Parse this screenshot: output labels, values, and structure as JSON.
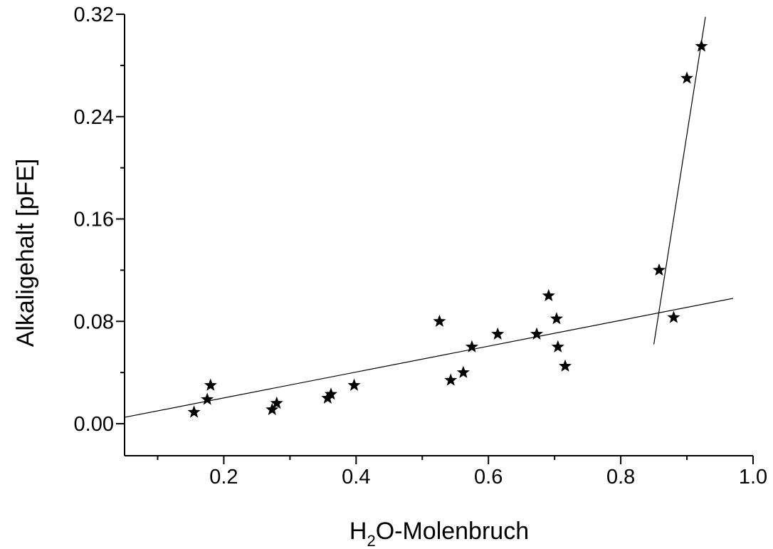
{
  "chart_data": {
    "type": "scatter",
    "xlabel": {
      "main": "H",
      "sub": "2",
      "rest": "O-Molenbruch"
    },
    "ylabel": "Alkaligehalt [pFE]",
    "xlim": [
      0.05,
      1.0
    ],
    "ylim": [
      -0.025,
      0.32
    ],
    "x_ticks": [
      0.2,
      0.4,
      0.6,
      0.8,
      1.0
    ],
    "x_tick_labels": [
      "0.2",
      "0.4",
      "0.6",
      "0.8",
      "1.0"
    ],
    "y_ticks": [
      0.0,
      0.08,
      0.16,
      0.24,
      0.32
    ],
    "y_tick_labels": [
      "0.00",
      "0.08",
      "0.16",
      "0.24",
      "0.32"
    ],
    "x_minor_step": 0.1,
    "y_minor_step": 0.04,
    "grid": false,
    "marker": "star",
    "marker_color": "#000000",
    "points": [
      {
        "x": 0.155,
        "y": 0.009
      },
      {
        "x": 0.175,
        "y": 0.019
      },
      {
        "x": 0.18,
        "y": 0.03
      },
      {
        "x": 0.273,
        "y": 0.011
      },
      {
        "x": 0.28,
        "y": 0.016
      },
      {
        "x": 0.357,
        "y": 0.02
      },
      {
        "x": 0.362,
        "y": 0.023
      },
      {
        "x": 0.397,
        "y": 0.03
      },
      {
        "x": 0.526,
        "y": 0.08
      },
      {
        "x": 0.543,
        "y": 0.034
      },
      {
        "x": 0.562,
        "y": 0.04
      },
      {
        "x": 0.575,
        "y": 0.06
      },
      {
        "x": 0.614,
        "y": 0.07
      },
      {
        "x": 0.673,
        "y": 0.07
      },
      {
        "x": 0.691,
        "y": 0.1
      },
      {
        "x": 0.703,
        "y": 0.082
      },
      {
        "x": 0.705,
        "y": 0.06
      },
      {
        "x": 0.716,
        "y": 0.045
      },
      {
        "x": 0.858,
        "y": 0.12
      },
      {
        "x": 0.88,
        "y": 0.083
      },
      {
        "x": 0.9,
        "y": 0.27
      },
      {
        "x": 0.922,
        "y": 0.295
      }
    ],
    "fit_lines": [
      {
        "x": [
          0.05,
          0.97
        ],
        "y": [
          0.005,
          0.098
        ]
      },
      {
        "x": [
          0.85,
          0.928
        ],
        "y": [
          0.062,
          0.318
        ]
      }
    ]
  }
}
